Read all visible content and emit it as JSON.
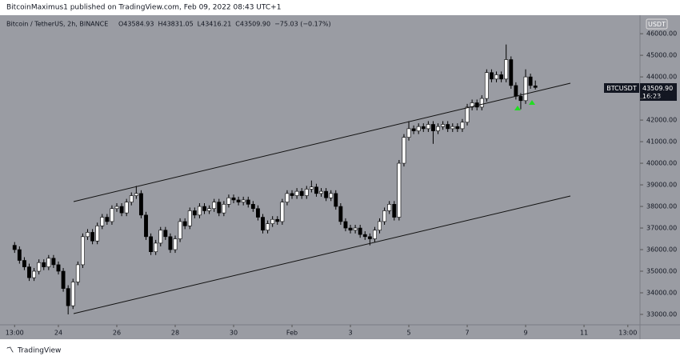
{
  "header": {
    "published": "BitcoinMaximus1 published on TradingView.com, Feb 09, 2022 08:43 UTC+1",
    "footer": "TradingView"
  },
  "chart_data": {
    "type": "candlestick",
    "symbol_title": "Bitcoin / TetherUS, 2h, BINANCE",
    "ohlc_legend": [
      "O43584.93",
      "H43831.05",
      "L43416.21",
      "C43509.90",
      "−75.03 (−0.17%)"
    ],
    "currency": "USDT",
    "last_price_tag": {
      "symbol": "BTCUSDT",
      "price": "43509.90",
      "countdown": "16:23"
    },
    "up_color": "#ffffff",
    "down_color": "#000000",
    "background": "#9a9ca3",
    "open": [
      36200,
      36000,
      35500,
      35200,
      34700,
      35000,
      35400,
      35200,
      35600,
      35300,
      35000,
      34200,
      33400,
      34500,
      35300,
      36600,
      36800,
      36400,
      37100,
      37500,
      37300,
      37900,
      38000,
      37700,
      38200,
      38500,
      38600,
      37600,
      36600,
      35900,
      36300,
      36900,
      36600,
      36000,
      36500,
      37300,
      37100,
      37800,
      37600,
      38000,
      37800,
      37900,
      38200,
      37700,
      38100,
      38400,
      38300,
      38200,
      38300,
      38100,
      37900,
      37500,
      36900,
      37200,
      37400,
      37300,
      38200,
      38600,
      38500,
      38700,
      38500,
      38800,
      38900,
      38600,
      38700,
      38400,
      38600,
      38000,
      37300,
      37000,
      36900,
      37000,
      36700,
      36600,
      36500,
      36900,
      37300,
      37800,
      38100,
      37500,
      40000,
      41200,
      41600,
      41500,
      41700,
      41600,
      41800,
      41500,
      41700,
      41800,
      41600,
      41700,
      41600,
      41900,
      42600,
      42800,
      42600,
      43000,
      44200,
      43900,
      44100,
      43900,
      44800,
      43600,
      43100,
      42900,
      44000,
      43584.93
    ],
    "high": [
      36350,
      36150,
      35650,
      35350,
      35150,
      35550,
      35550,
      35750,
      35750,
      35450,
      35150,
      34350,
      34650,
      35450,
      36750,
      36950,
      36950,
      37250,
      37650,
      37650,
      38050,
      38150,
      38150,
      38350,
      38650,
      38950,
      38750,
      37750,
      36750,
      36450,
      37050,
      37050,
      36750,
      36650,
      37450,
      37450,
      37950,
      37950,
      38150,
      38150,
      38050,
      38350,
      38350,
      38250,
      38550,
      38550,
      38450,
      38450,
      38450,
      38250,
      38050,
      37650,
      37350,
      37550,
      37550,
      38350,
      38750,
      38750,
      38850,
      38850,
      38950,
      39200,
      39050,
      38850,
      38850,
      38750,
      38750,
      38150,
      37450,
      37150,
      37150,
      37150,
      36850,
      36750,
      37050,
      37450,
      37950,
      38250,
      38250,
      40150,
      41350,
      41950,
      41750,
      41850,
      41850,
      41950,
      41950,
      41850,
      41950,
      41950,
      41850,
      41850,
      42050,
      42750,
      42950,
      42950,
      43150,
      44350,
      44350,
      44250,
      44250,
      45500,
      44950,
      43750,
      43250,
      44350,
      44150,
      43831.05
    ],
    "low": [
      35850,
      35350,
      35050,
      34550,
      34550,
      34850,
      35050,
      35050,
      35150,
      34850,
      34050,
      33000,
      33250,
      34350,
      35150,
      36450,
      36250,
      36250,
      36950,
      37150,
      37150,
      37750,
      37550,
      37550,
      38050,
      38350,
      37450,
      36450,
      35750,
      35750,
      36150,
      36450,
      35850,
      35850,
      36350,
      36950,
      36950,
      37450,
      37450,
      37650,
      37650,
      37750,
      37550,
      37550,
      37950,
      38150,
      38050,
      38050,
      37950,
      37750,
      37350,
      36750,
      36750,
      37050,
      37150,
      37150,
      38050,
      38350,
      38350,
      38350,
      38350,
      38650,
      38450,
      38450,
      38250,
      38250,
      37850,
      37150,
      36850,
      36750,
      36750,
      36550,
      36450,
      36200,
      36350,
      36750,
      37150,
      37650,
      37350,
      37350,
      39850,
      41050,
      41350,
      41350,
      41450,
      41450,
      40900,
      41350,
      41550,
      41450,
      41450,
      41450,
      41450,
      41750,
      42450,
      42450,
      42450,
      42850,
      43750,
      43750,
      43750,
      43750,
      43450,
      42950,
      42500,
      42750,
      43450,
      43416.21
    ],
    "close": [
      36000,
      35500,
      35200,
      34700,
      35000,
      35400,
      35200,
      35600,
      35300,
      35000,
      34200,
      33400,
      34500,
      35300,
      36600,
      36800,
      36400,
      37100,
      37500,
      37300,
      37900,
      38000,
      37700,
      38200,
      38500,
      38600,
      37600,
      36600,
      35900,
      36300,
      36900,
      36600,
      36000,
      36500,
      37300,
      37100,
      37800,
      37600,
      38000,
      37800,
      37900,
      38200,
      37700,
      38100,
      38400,
      38300,
      38200,
      38300,
      38100,
      37900,
      37500,
      36900,
      37200,
      37400,
      37300,
      38200,
      38600,
      38500,
      38700,
      38500,
      38800,
      38900,
      38600,
      38700,
      38400,
      38600,
      38000,
      37300,
      37000,
      36900,
      37000,
      36700,
      36600,
      36500,
      36900,
      37300,
      37800,
      38100,
      37500,
      40000,
      41200,
      41600,
      41500,
      41700,
      41600,
      41800,
      41500,
      41700,
      41800,
      41600,
      41700,
      41600,
      41900,
      42600,
      42800,
      42600,
      43000,
      44200,
      43900,
      44100,
      43900,
      44800,
      43600,
      43100,
      42900,
      44000,
      43600,
      43509.9
    ],
    "xlim": [
      -3,
      128.5
    ],
    "xticks": [
      {
        "value": 0,
        "label": "13:00"
      },
      {
        "value": 9,
        "label": "24"
      },
      {
        "value": 21,
        "label": "26"
      },
      {
        "value": 33,
        "label": "28"
      },
      {
        "value": 45,
        "label": "30"
      },
      {
        "value": 57,
        "label": "Feb"
      },
      {
        "value": 69,
        "label": "3"
      },
      {
        "value": 81,
        "label": "5"
      },
      {
        "value": 93,
        "label": "7"
      },
      {
        "value": 105,
        "label": "9"
      },
      {
        "value": 117,
        "label": "11"
      },
      {
        "value": 126,
        "label": "13:00"
      }
    ],
    "ylim": [
      32518,
      46857
    ],
    "yticks": [
      {
        "value": 33000,
        "label": "33000.00"
      },
      {
        "value": 34000,
        "label": "34000.00"
      },
      {
        "value": 35000,
        "label": "35000.00"
      },
      {
        "value": 36000,
        "label": "36000.00"
      },
      {
        "value": 37000,
        "label": "37000.00"
      },
      {
        "value": 38000,
        "label": "38000.00"
      },
      {
        "value": 39000,
        "label": "39000.00"
      },
      {
        "value": 40000,
        "label": "40000.00"
      },
      {
        "value": 41000,
        "label": "41000.00"
      },
      {
        "value": 42000,
        "label": "42000.00"
      },
      {
        "value": 43000,
        "label": "43000.00"
      },
      {
        "value": 44000,
        "label": "44000.00"
      },
      {
        "value": 45000,
        "label": "45000.00"
      },
      {
        "value": 46000,
        "label": "46000.00"
      }
    ]
  }
}
